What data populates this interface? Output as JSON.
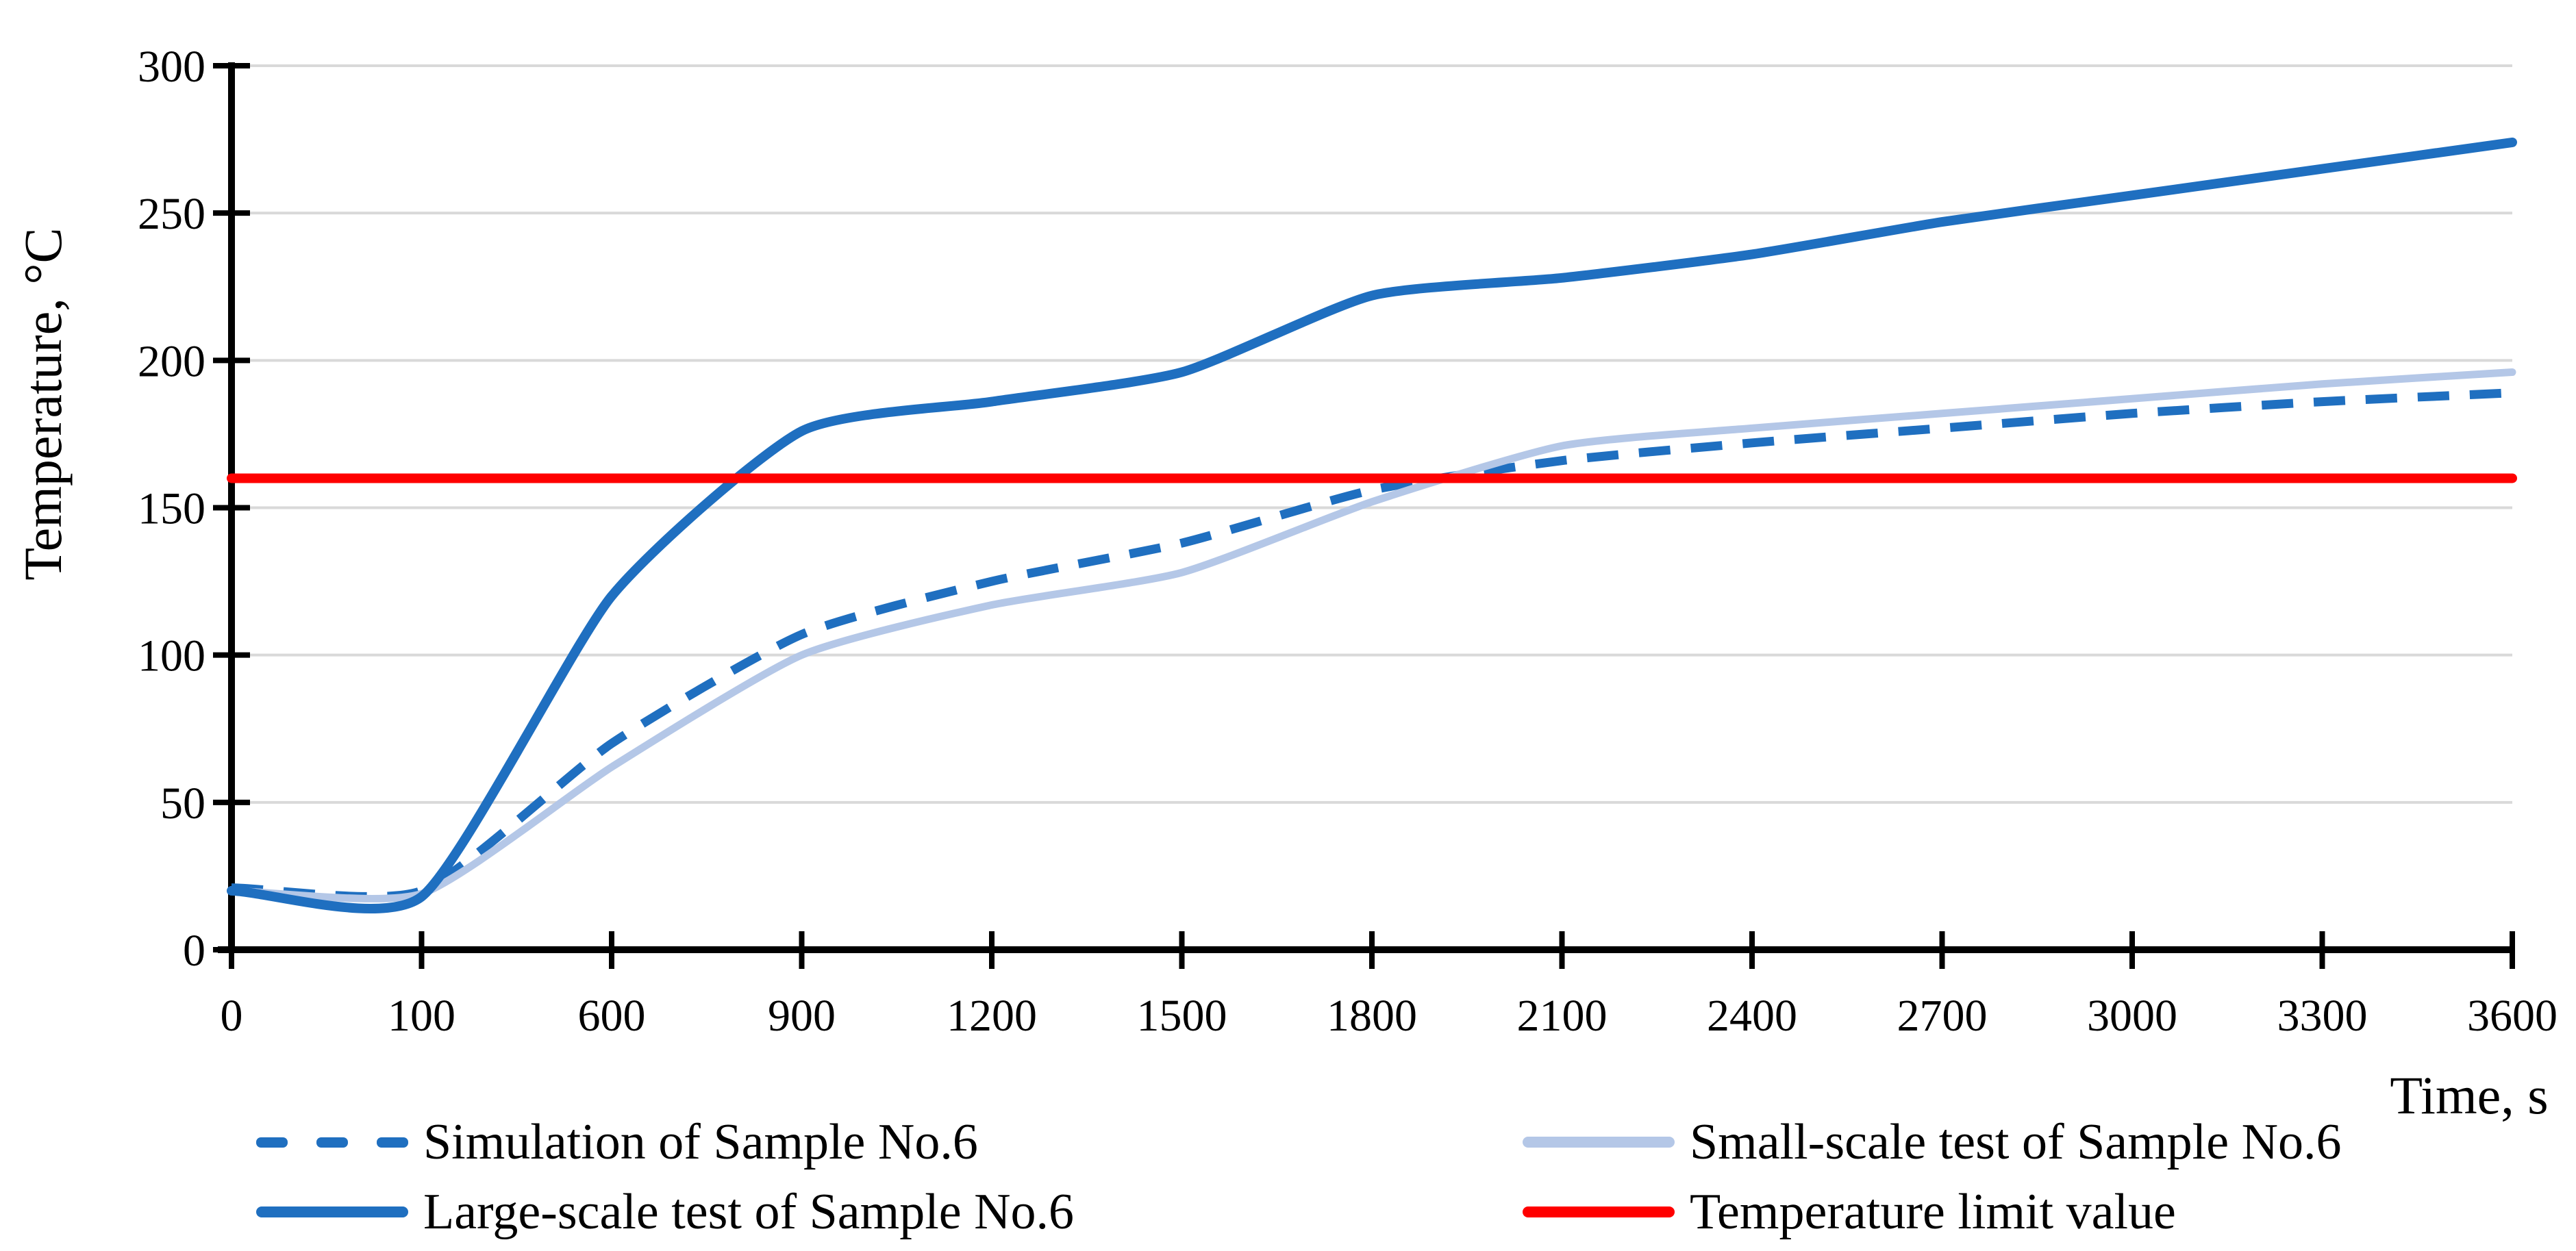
{
  "figure": {
    "y_axis_title": "Temperature, °C",
    "x_axis_title": "Time, s",
    "background_color": "#FFFFFF",
    "axis_color": "#000000",
    "gridline_color": "#D9D9D9"
  },
  "legend": {
    "position": "bottom, two columns",
    "items": [
      {
        "label": "Simulation of Sample No.6",
        "style": "dashed",
        "color": "#1F6FC0"
      },
      {
        "label": "Small-scale test of Sample No.6",
        "style": "solid",
        "color": "#B4C7E7"
      },
      {
        "label": "Large-scale test of Sample No.6",
        "style": "solid",
        "color": "#1F6FC0"
      },
      {
        "label": "Temperature limit value",
        "style": "solid",
        "color": "#FF0000"
      }
    ]
  },
  "chart_data": {
    "type": "line",
    "title": "",
    "xlabel": "Time, s",
    "ylabel": "Temperature, °C",
    "x_axis_type": "categorical (equal pixel spacing between listed tick values)",
    "categories": [
      0,
      100,
      600,
      900,
      1200,
      1500,
      1800,
      2100,
      2400,
      2700,
      3000,
      3300,
      3600
    ],
    "x_tick_labels": [
      "0",
      "100",
      "600",
      "900",
      "1200",
      "1500",
      "1800",
      "2100",
      "2400",
      "2700",
      "3000",
      "3300",
      "3600"
    ],
    "y_ticks": [
      0,
      50,
      100,
      150,
      200,
      250,
      300
    ],
    "y_tick_labels": [
      "0",
      "50",
      "100",
      "150",
      "200",
      "250",
      "300"
    ],
    "ylim": [
      0,
      300
    ],
    "grid": "horizontal gridlines at every 50 °C",
    "legend_position": "bottom",
    "series": [
      {
        "name": "Simulation of Sample No.6",
        "color": "#1F6FC0",
        "style": "dashed",
        "smooth": true,
        "stroke_width": 13,
        "values": [
          21,
          20,
          70,
          107,
          125,
          138,
          156,
          166,
          172,
          177,
          182,
          186,
          189
        ]
      },
      {
        "name": "Small-scale test of Sample No.6",
        "color": "#B4C7E7",
        "style": "solid",
        "smooth": true,
        "stroke_width": 11,
        "values": [
          20,
          19,
          62,
          100,
          117,
          128,
          152,
          171,
          177,
          182,
          187,
          192,
          196
        ]
      },
      {
        "name": "Large-scale test of Sample No.6",
        "color": "#1F6FC0",
        "style": "solid",
        "smooth": true,
        "stroke_width": 14,
        "values": [
          20,
          18,
          120,
          176,
          186,
          196,
          222,
          228,
          236,
          247,
          256,
          265,
          274
        ]
      },
      {
        "name": "Temperature limit value",
        "color": "#FF0000",
        "style": "solid",
        "smooth": false,
        "stroke_width": 14,
        "values": [
          160,
          160,
          160,
          160,
          160,
          160,
          160,
          160,
          160,
          160,
          160,
          160,
          160
        ]
      }
    ]
  }
}
